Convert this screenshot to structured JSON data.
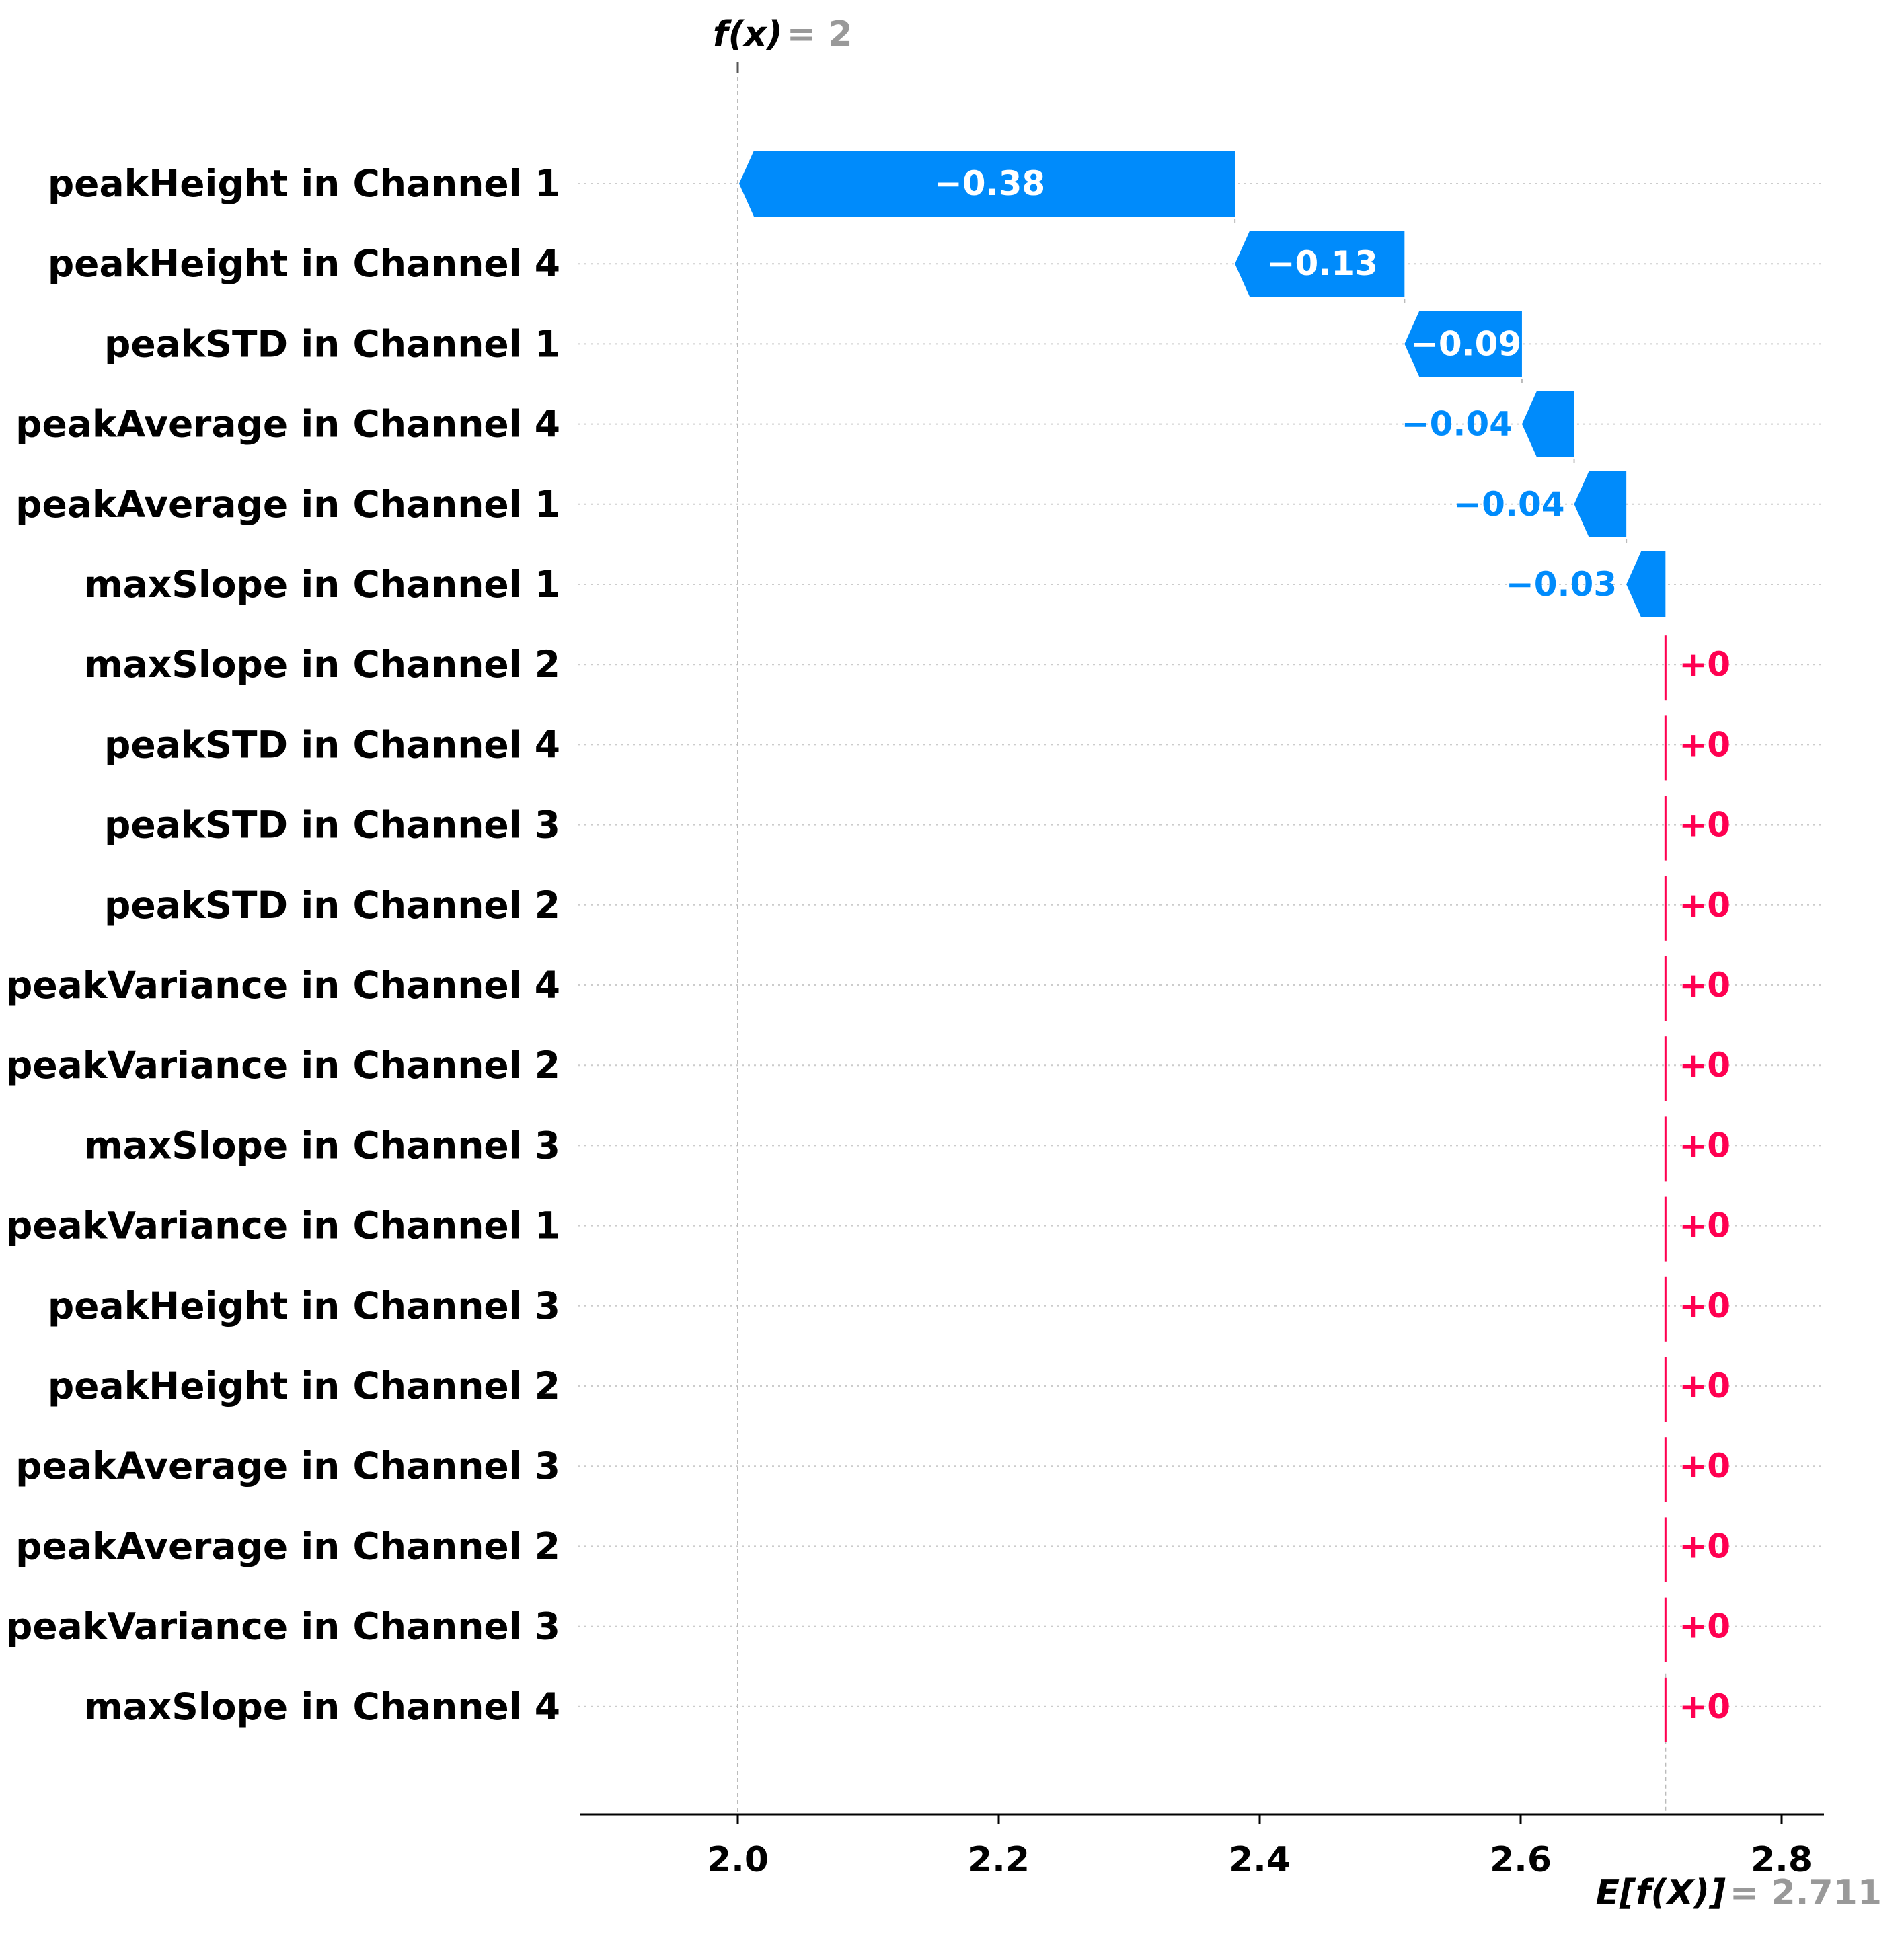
{
  "chart_data": {
    "type": "waterfall",
    "base_value": 2.711,
    "output_value": 2,
    "features": [
      {
        "name": "peakHeight in Channel 1",
        "value": -0.38,
        "label": "−0.38"
      },
      {
        "name": "peakHeight in Channel 4",
        "value": -0.13,
        "label": "−0.13"
      },
      {
        "name": "peakSTD in Channel 1",
        "value": -0.09,
        "label": "−0.09"
      },
      {
        "name": "peakAverage in Channel 4",
        "value": -0.04,
        "label": "−0.04"
      },
      {
        "name": "peakAverage in Channel 1",
        "value": -0.04,
        "label": "−0.04"
      },
      {
        "name": "maxSlope in Channel 1",
        "value": -0.03,
        "label": "−0.03"
      },
      {
        "name": "maxSlope in Channel 2",
        "value": 0,
        "label": "+0"
      },
      {
        "name": "peakSTD in Channel 4",
        "value": 0,
        "label": "+0"
      },
      {
        "name": "peakSTD in Channel 3",
        "value": 0,
        "label": "+0"
      },
      {
        "name": "peakSTD in Channel 2",
        "value": 0,
        "label": "+0"
      },
      {
        "name": "peakVariance in Channel 4",
        "value": 0,
        "label": "+0"
      },
      {
        "name": "peakVariance in Channel 2",
        "value": 0,
        "label": "+0"
      },
      {
        "name": "maxSlope in Channel 3",
        "value": 0,
        "label": "+0"
      },
      {
        "name": "peakVariance in Channel 1",
        "value": 0,
        "label": "+0"
      },
      {
        "name": "peakHeight in Channel 3",
        "value": 0,
        "label": "+0"
      },
      {
        "name": "peakHeight in Channel 2",
        "value": 0,
        "label": "+0"
      },
      {
        "name": "peakAverage in Channel 3",
        "value": 0,
        "label": "+0"
      },
      {
        "name": "peakAverage in Channel 2",
        "value": 0,
        "label": "+0"
      },
      {
        "name": "peakVariance in Channel 3",
        "value": 0,
        "label": "+0"
      },
      {
        "name": "maxSlope in Channel 4",
        "value": 0,
        "label": "+0"
      }
    ],
    "x_ticks": [
      "2.0",
      "2.2",
      "2.4",
      "2.6",
      "2.8"
    ],
    "xlim": [
      1.879,
      2.836
    ],
    "annotations": {
      "fx_prefix": "f(x)",
      "fx_value": "= 2",
      "efx_prefix": "E[f(X)]",
      "efx_value": "= 2.711"
    },
    "colors": {
      "negative": "#008bfb",
      "positive": "#ff0051",
      "text": "#000000",
      "annotation": "#999999"
    },
    "grid": true
  }
}
